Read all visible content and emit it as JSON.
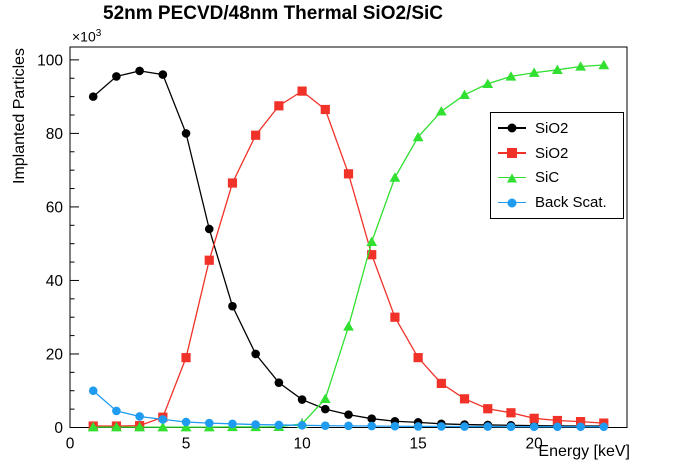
{
  "chart_data": {
    "type": "line",
    "title": "52nm PECVD/48nm Thermal SiO2/SiC",
    "xlabel": "Energy [keV]",
    "ylabel": "Implanted Particles",
    "y_scale": {
      "base": "×10",
      "exp": "3"
    },
    "xlim": [
      0,
      24
    ],
    "ylim": [
      0,
      103.5
    ],
    "x_major_ticks": [
      0,
      5,
      10,
      15,
      20
    ],
    "x_minor_step": 1,
    "y_major_ticks": [
      0,
      20,
      40,
      60,
      80,
      100
    ],
    "y_minor_step": 5,
    "grid": false,
    "legend_position": "right-middle",
    "x": [
      1,
      2,
      3,
      4,
      5,
      6,
      7,
      8,
      9,
      10,
      11,
      12,
      13,
      14,
      15,
      16,
      17,
      18,
      19,
      20,
      21,
      22,
      23
    ],
    "series": [
      {
        "key": "sio2-pecvd",
        "name": "SiO2",
        "color": "#000000",
        "marker": "circle",
        "values": [
          90,
          95.5,
          97,
          96,
          80,
          54,
          33,
          20,
          12.2,
          7.6,
          5,
          3.5,
          2.4,
          1.7,
          1.4,
          1,
          0.8,
          0.7,
          0.6,
          0.5,
          0.45,
          0.4,
          0.4
        ]
      },
      {
        "key": "sio2-thermal",
        "name": "SiO2",
        "color": "#f03228",
        "marker": "square",
        "values": [
          0.4,
          0.4,
          0.5,
          2.8,
          19,
          45.5,
          66.5,
          79.5,
          87.5,
          91.5,
          86.5,
          69,
          47,
          30,
          19,
          12,
          7.8,
          5.1,
          4,
          2.5,
          1.9,
          1.6,
          1.2
        ]
      },
      {
        "key": "sic",
        "name": "SiC",
        "color": "#31e031",
        "marker": "triangle",
        "values": [
          0.1,
          0.1,
          0.1,
          0.1,
          0.1,
          0.1,
          0.15,
          0.15,
          0.2,
          1,
          7.8,
          27.5,
          50.5,
          68,
          79,
          86,
          90.5,
          93.5,
          95.5,
          96.5,
          97.3,
          98.2,
          98.6
        ]
      },
      {
        "key": "back-scat",
        "name": "Back Scat.",
        "color": "#1f9bef",
        "marker": "circle",
        "values": [
          10,
          4.5,
          3,
          2.2,
          1.5,
          1.2,
          1,
          0.8,
          0.7,
          0.6,
          0.5,
          0.45,
          0.4,
          0.35,
          0.3,
          0.3,
          0.25,
          0.25,
          0.2,
          0.2,
          0.2,
          0.2,
          0.2
        ]
      }
    ]
  }
}
